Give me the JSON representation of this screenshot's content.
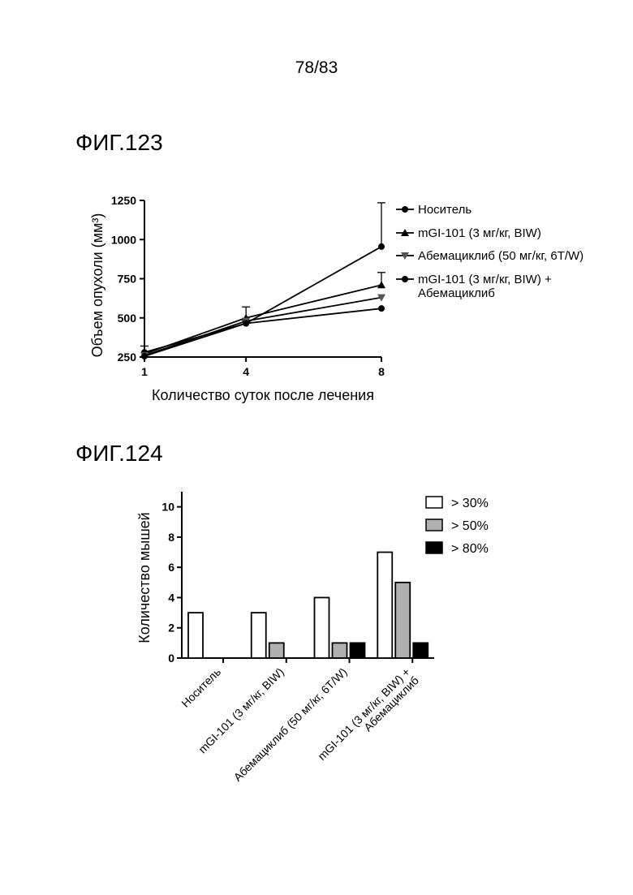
{
  "page_number": "78/83",
  "figures": [
    {
      "label": "ФИГ.123"
    },
    {
      "label": "ФИГ.124"
    }
  ],
  "chart_data": [
    {
      "type": "line",
      "xlabel": "Количество суток после лечения",
      "ylabel": "Объем опухоли (мм³)",
      "x": [
        1,
        4,
        8
      ],
      "x_ticks": [
        "1",
        "4",
        "8"
      ],
      "y_ticks": [
        "250",
        "500",
        "750",
        "1000",
        "1250"
      ],
      "ylim": [
        250,
        1250
      ],
      "legend_position": "right",
      "series": [
        {
          "name": "Носитель",
          "marker": "circle",
          "values": [
            280,
            465,
            955
          ],
          "err": [
            40,
            0,
            280
          ]
        },
        {
          "name": "mGI-101 (3 мг/кг, BIW)",
          "marker": "triangle-up",
          "values": [
            270,
            500,
            710
          ],
          "err": [
            0,
            70,
            80
          ]
        },
        {
          "name": "Абемациклиб (50 мг/кг, 6T/W)",
          "marker": "triangle-down",
          "values": [
            260,
            480,
            630
          ],
          "err": [
            0,
            0,
            0
          ]
        },
        {
          "name": "mGI-101 (3 мг/кг, BIW) + Абемациклиб",
          "marker": "circle",
          "values": [
            255,
            465,
            560
          ],
          "err": [
            0,
            0,
            0
          ]
        }
      ]
    },
    {
      "type": "bar",
      "ylabel": "Количество мышей",
      "categories": [
        "Носитель",
        "mGI-101 (3 мг/кг, BIW)",
        "Абемациклиб (50 мг/кг, 6T/W)",
        "mGI-101 (3 мг/кг, BIW) + Абемациклиб"
      ],
      "y_ticks": [
        "0",
        "2",
        "4",
        "6",
        "8",
        "10"
      ],
      "ylim": [
        0,
        11
      ],
      "legend_position": "top-right",
      "series": [
        {
          "name": "> 30%",
          "color": "#ffffff",
          "values": [
            3,
            3,
            4,
            7
          ]
        },
        {
          "name": "> 50%",
          "color": "#b0b0b0",
          "values": [
            0,
            1,
            1,
            5
          ]
        },
        {
          "name": "> 80%",
          "color": "#000000",
          "values": [
            0,
            0,
            1,
            1
          ]
        }
      ]
    }
  ]
}
